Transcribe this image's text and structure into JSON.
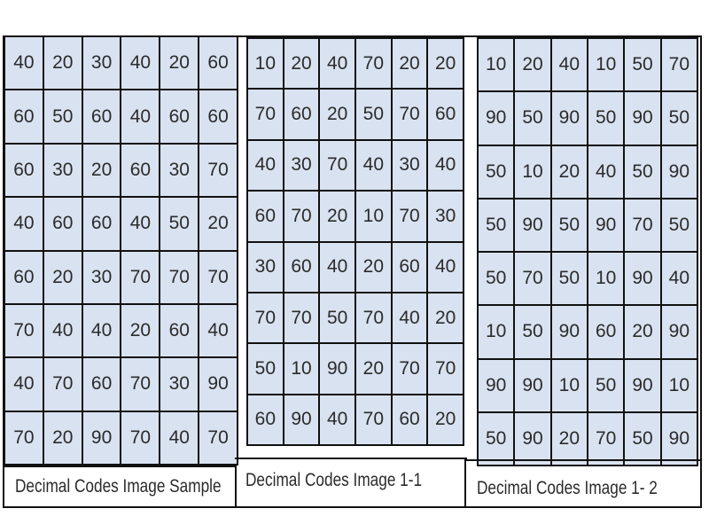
{
  "panels": [
    {
      "caption": "Decimal Codes Image Sample",
      "rows": [
        [
          "40",
          "20",
          "30",
          "40",
          "20",
          "60"
        ],
        [
          "60",
          "50",
          "60",
          "40",
          "60",
          "60"
        ],
        [
          "60",
          "30",
          "20",
          "60",
          "30",
          "70"
        ],
        [
          "40",
          "60",
          "60",
          "40",
          "50",
          "20"
        ],
        [
          "60",
          "20",
          "30",
          "70",
          "70",
          "70"
        ],
        [
          "70",
          "40",
          "40",
          "20",
          "60",
          "40"
        ],
        [
          "40",
          "70",
          "60",
          "70",
          "30",
          "90"
        ],
        [
          "70",
          "20",
          "90",
          "70",
          "40",
          "70"
        ]
      ]
    },
    {
      "caption": "Decimal Codes Image 1-1",
      "rows": [
        [
          "10",
          "20",
          "40",
          "70",
          "20",
          "20"
        ],
        [
          "70",
          "60",
          "20",
          "50",
          "70",
          "60"
        ],
        [
          "40",
          "30",
          "70",
          "40",
          "30",
          "40"
        ],
        [
          "60",
          "70",
          "20",
          "10",
          "70",
          "30"
        ],
        [
          "30",
          "60",
          "40",
          "20",
          "60",
          "40"
        ],
        [
          "70",
          "70",
          "50",
          "70",
          "40",
          "20"
        ],
        [
          "50",
          "10",
          "90",
          "20",
          "70",
          "70"
        ],
        [
          "60",
          "90",
          "40",
          "70",
          "60",
          "20"
        ]
      ]
    },
    {
      "caption": "Decimal Codes Image 1- 2",
      "rows": [
        [
          "10",
          "20",
          "40",
          "10",
          "50",
          "70"
        ],
        [
          "90",
          "50",
          "90",
          "50",
          "90",
          "50"
        ],
        [
          "50",
          "10",
          "20",
          "40",
          "50",
          "90"
        ],
        [
          "50",
          "90",
          "50",
          "90",
          "70",
          "50"
        ],
        [
          "50",
          "70",
          "50",
          "10",
          "90",
          "40"
        ],
        [
          "10",
          "50",
          "90",
          "60",
          "20",
          "90"
        ],
        [
          "90",
          "90",
          "10",
          "50",
          "90",
          "10"
        ],
        [
          "50",
          "90",
          "20",
          "70",
          "50",
          "90"
        ]
      ]
    }
  ]
}
